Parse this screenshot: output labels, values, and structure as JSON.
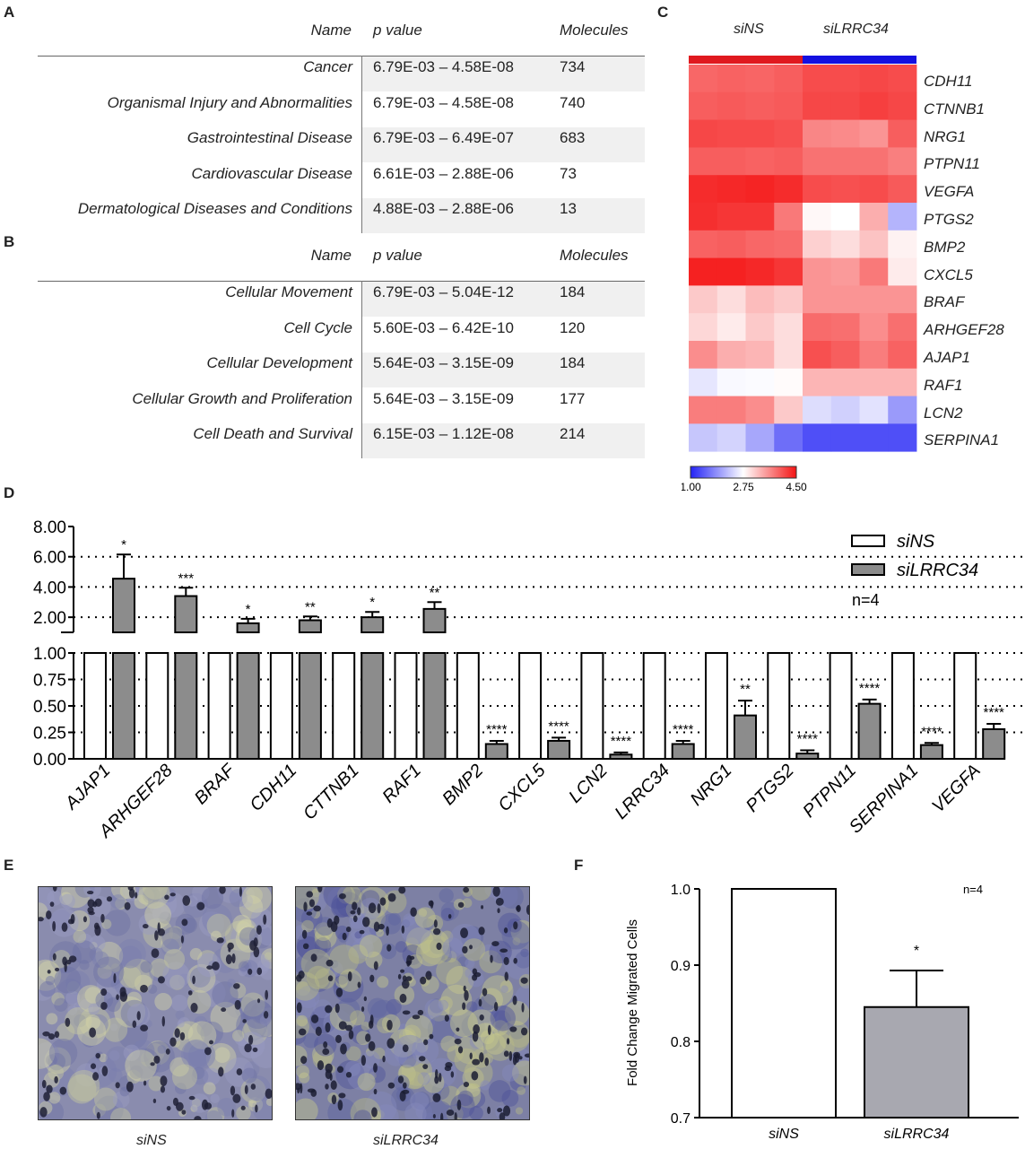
{
  "panels": {
    "A": "A",
    "B": "B",
    "C": "C",
    "D": "D",
    "E": "E",
    "F": "F"
  },
  "table_a": {
    "headers": {
      "name": "Name",
      "p": "p value",
      "molecules": "Molecules"
    },
    "rows": [
      {
        "name": "Cancer",
        "p": "6.79E-03 – 4.58E-08",
        "molecules": "734"
      },
      {
        "name": "Organismal Injury and Abnormalities",
        "p": "6.79E-03 – 4.58E-08",
        "molecules": "740"
      },
      {
        "name": "Gastrointestinal Disease",
        "p": "6.79E-03 – 6.49E-07",
        "molecules": "683"
      },
      {
        "name": "Cardiovascular Disease",
        "p": "6.61E-03 – 2.88E-06",
        "molecules": "73"
      },
      {
        "name": "Dermatological Diseases and Conditions",
        "p": "4.88E-03 – 2.88E-06",
        "molecules": "13"
      }
    ]
  },
  "table_b": {
    "headers": {
      "name": "Name",
      "p": "p value",
      "molecules": "Molecules"
    },
    "rows": [
      {
        "name": "Cellular Movement",
        "p": "6.79E-03 – 5.04E-12",
        "molecules": "184"
      },
      {
        "name": "Cell Cycle",
        "p": "5.60E-03 – 6.42E-10",
        "molecules": "120"
      },
      {
        "name": "Cellular Development",
        "p": "5.64E-03 – 3.15E-09",
        "molecules": "184"
      },
      {
        "name": "Cellular Growth and Proliferation",
        "p": "5.64E-03 – 3.15E-09",
        "molecules": "177"
      },
      {
        "name": "Cell Death and Survival",
        "p": "6.15E-03 – 1.12E-08",
        "molecules": "214"
      }
    ]
  },
  "colors": {
    "siNS_bar": "#e0191f",
    "siLRRC34_bar": "#1410e0",
    "grey_bar": "#8c8c8c",
    "panel_f_grey": "#a8a8b0",
    "heat_low": "#2323f5",
    "heat_mid": "#ffffff",
    "heat_high": "#f41414"
  },
  "chart_data": [
    {
      "type": "heatmap",
      "column_groups": [
        "siNS",
        "siLRRC34"
      ],
      "columns_per_group": 4,
      "rows": [
        "CDH11",
        "CTNNB1",
        "NRG1",
        "PTPN11",
        "VEGFA",
        "PTGS2",
        "BMP2",
        "CXCL5",
        "BRAF",
        "ARHGEF28",
        "AJAP1",
        "RAF1",
        "LCN2",
        "SERPINA1"
      ],
      "values": [
        [
          3.88,
          3.92,
          3.9,
          3.95,
          4.08,
          4.08,
          4.12,
          4.08
        ],
        [
          3.95,
          3.98,
          3.95,
          3.98,
          4.12,
          4.12,
          4.18,
          4.12
        ],
        [
          4.12,
          4.1,
          4.1,
          4.05,
          3.65,
          3.62,
          3.55,
          3.95
        ],
        [
          3.95,
          3.95,
          3.92,
          3.95,
          3.8,
          3.8,
          3.8,
          3.7
        ],
        [
          4.32,
          4.35,
          4.38,
          4.32,
          4.08,
          4.05,
          4.08,
          3.98
        ],
        [
          4.3,
          4.25,
          4.25,
          3.75,
          2.8,
          2.75,
          3.35,
          2.15
        ],
        [
          3.92,
          3.95,
          3.88,
          3.85,
          3.1,
          3.0,
          3.2,
          2.85
        ],
        [
          4.4,
          4.4,
          4.35,
          4.25,
          3.55,
          3.5,
          3.75,
          2.9
        ],
        [
          3.15,
          3.0,
          3.25,
          3.15,
          3.55,
          3.55,
          3.55,
          3.55
        ],
        [
          3.05,
          2.9,
          3.15,
          3.0,
          3.85,
          3.82,
          3.6,
          3.82
        ],
        [
          3.6,
          3.35,
          3.3,
          3.0,
          4.05,
          3.95,
          3.72,
          3.92
        ],
        [
          2.55,
          2.7,
          2.72,
          2.78,
          3.3,
          3.3,
          3.3,
          3.3
        ],
        [
          3.72,
          3.72,
          3.6,
          3.15,
          2.48,
          2.38,
          2.52,
          1.95
        ],
        [
          2.3,
          2.4,
          2.05,
          1.6,
          1.35,
          1.35,
          1.35,
          1.35
        ]
      ],
      "colorbar": {
        "min": 1.0,
        "mid": 2.75,
        "max": 4.5,
        "ticks": [
          "1.00",
          "2.75",
          "4.50"
        ]
      }
    },
    {
      "type": "bar",
      "categories": [
        "AJAP1",
        "ARHGEF28",
        "BRAF",
        "CDH11",
        "CTTNB1",
        "RAF1",
        "BMP2",
        "CXCL5",
        "LCN2",
        "LRRC34",
        "NRG1",
        "PTGS2",
        "PTPN11",
        "SERPINA1",
        "VEGFA"
      ],
      "series": [
        {
          "name": "siNS",
          "values": [
            1,
            1,
            1,
            1,
            1,
            1,
            1,
            1,
            1,
            1,
            1,
            1,
            1,
            1,
            1
          ]
        },
        {
          "name": "siLRRC34",
          "values": [
            4.55,
            3.4,
            1.6,
            1.8,
            2.0,
            2.55,
            0.14,
            0.17,
            0.04,
            0.14,
            0.41,
            0.05,
            0.52,
            0.13,
            0.28
          ],
          "error": [
            1.6,
            0.55,
            0.3,
            0.25,
            0.35,
            0.45,
            0.03,
            0.03,
            0.02,
            0.03,
            0.14,
            0.03,
            0.04,
            0.02,
            0.05
          ]
        }
      ],
      "significance": [
        "*",
        "***",
        "*",
        "**",
        "*",
        "**",
        "****",
        "****",
        "****",
        "****",
        "**",
        "****",
        "****",
        "****",
        "****"
      ],
      "y_upper_ticks": [
        "2.00",
        "4.00",
        "6.00",
        "8.00"
      ],
      "y_lower_ticks": [
        "0.00",
        "0.25",
        "0.50",
        "0.75",
        "1.00"
      ],
      "ylim_upper": [
        1,
        8
      ],
      "ylim_lower": [
        0,
        1
      ],
      "annotation": "n=4",
      "legend": "top-right"
    },
    {
      "type": "bar",
      "categories": [
        "siNS",
        "siLRRC34"
      ],
      "values": [
        1.0,
        0.845
      ],
      "error": [
        0,
        0.048
      ],
      "significance": [
        "",
        "*"
      ],
      "ylabel": "Fold Change Migrated Cells",
      "ylim": [
        0.7,
        1.0
      ],
      "y_ticks": [
        "0.7",
        "0.8",
        "0.9",
        "1.0"
      ],
      "annotation": "n=4"
    }
  ],
  "panel_e": {
    "left_caption": "siNS",
    "right_caption": "siLRRC34"
  }
}
